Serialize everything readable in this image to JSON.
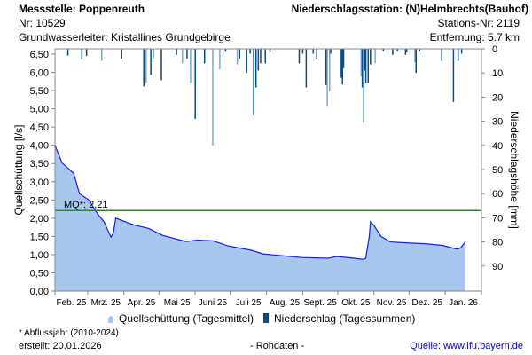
{
  "header": {
    "station_label": "Messstelle: Poppenreuth",
    "number": "Nr: 10529",
    "aquifer": "Grundwasserleiter: Kristallines Grundgebirge",
    "precip_station": "Niederschlagsstation: (N)Helmbrechts(Bauhof)",
    "precip_station_nr": "Stations-Nr: 2119",
    "distance": "Entfernung: 5.7 km"
  },
  "footer": {
    "note": "* Abflussjahr (2010-2024)",
    "created": "erstellt:  20.01.2026",
    "raw": "- Rohdaten -",
    "source": "Quelle: www.lfu.bayern.de"
  },
  "colors": {
    "flow_fill": "#a6c8ef",
    "flow_line": "#1a1aff",
    "precip_dark": "#0a4a85",
    "precip_light": "#7aa8d8",
    "mq": "#2a8a2a",
    "source": "#0000cc"
  },
  "chart_data": {
    "type": "area",
    "x_unit": "days since 2025-02-01",
    "xlabel": "",
    "ylabel": "Quellschüttung [l/s]",
    "y2label": "Niederschlagshöhe [mm]",
    "ylim": [
      0,
      6.5
    ],
    "y2lim": [
      0,
      100
    ],
    "y2_inverted": true,
    "yticks": [
      "0,00",
      "0,50",
      "1,00",
      "1,50",
      "2,00",
      "2,50",
      "3,00",
      "3,50",
      "4,00",
      "4,50",
      "5,00",
      "5,50",
      "6,00",
      "6,50"
    ],
    "y2ticks": [
      "0",
      "10",
      "20",
      "30",
      "40",
      "50",
      "60",
      "70",
      "80",
      "90"
    ],
    "month_starts": [
      0,
      28,
      59,
      89,
      120,
      150,
      181,
      212,
      242,
      273,
      303,
      334,
      365
    ],
    "xticks": [
      "Feb. 25",
      "Mrz. 25",
      "Apr. 25",
      "Mai 25",
      "Juni 25",
      "Juli 25",
      "Aug. 25",
      "Sept. 25",
      "Okt. 25",
      "Nov. 25",
      "Dez. 25",
      "Jan. 26"
    ],
    "reference_line": {
      "label": "MQ*: 2,21",
      "value": 2.21
    },
    "legend": [
      "Quellschüttung (Tagesmittel)",
      "Niederschlag (Tagessummen)"
    ],
    "legend_position": "bottom",
    "series": [
      {
        "name": "Quellschüttung (Tagesmittel)",
        "type": "area",
        "x": [
          0,
          6,
          16,
          21,
          29,
          36,
          42,
          48,
          50,
          52,
          67,
          80,
          92,
          112,
          122,
          135,
          148,
          168,
          178,
          211,
          234,
          241,
          256,
          264,
          266,
          269,
          270,
          273,
          279,
          287,
          302,
          317,
          332,
          344,
          347,
          350,
          351
        ],
        "y": [
          4.0,
          3.52,
          3.23,
          2.67,
          2.5,
          2.14,
          1.9,
          1.48,
          1.6,
          2.0,
          1.82,
          1.72,
          1.53,
          1.36,
          1.4,
          1.38,
          1.24,
          1.12,
          1.02,
          0.92,
          0.9,
          0.95,
          0.9,
          0.87,
          0.9,
          1.5,
          1.9,
          1.8,
          1.5,
          1.35,
          1.32,
          1.3,
          1.25,
          1.15,
          1.18,
          1.3,
          1.35
        ]
      },
      {
        "name": "Niederschlag (Tagessummen)",
        "type": "bar",
        "axis": "y2",
        "x": [
          11,
          23,
          27,
          40,
          57,
          76,
          78,
          82,
          84,
          91,
          104,
          109,
          113,
          116,
          120,
          128,
          135,
          141,
          146,
          156,
          158,
          164,
          167,
          170,
          172,
          174,
          176,
          180,
          184,
          209,
          212,
          215,
          221,
          224,
          232,
          233,
          235,
          236,
          245,
          246,
          247,
          262,
          263,
          264,
          265,
          266,
          268,
          270,
          274,
          281,
          289,
          293,
          300,
          301,
          308,
          309,
          312,
          331,
          341,
          345,
          348
        ],
        "y": [
          2.8,
          4.5,
          3,
          5,
          4,
          15.6,
          14,
          10.8,
          4,
          13,
          2.5,
          6,
          4,
          14,
          29,
          6,
          40,
          8.6,
          1.2,
          6.5,
          4,
          10,
          2,
          27.6,
          16,
          9,
          6,
          6,
          1.5,
          6,
          2,
          16,
          2,
          4.5,
          15,
          24,
          17.5,
          2,
          12,
          14.8,
          8,
          11.5,
          16,
          30.6,
          9,
          14,
          14,
          6.5,
          6,
          1,
          2.5,
          1,
          2.5,
          1.5,
          5.5,
          10,
          1,
          5,
          22,
          5,
          2
        ],
        "light": [
          0,
          0,
          0,
          1,
          0,
          0,
          1,
          0,
          0,
          0,
          0,
          1,
          0,
          1,
          0,
          0,
          1,
          1,
          0,
          1,
          0,
          0,
          0,
          0,
          0,
          0,
          0,
          0,
          0,
          0,
          0,
          0,
          0,
          0,
          0,
          1,
          1,
          0,
          0,
          0,
          0,
          1,
          0,
          1,
          0,
          0,
          0,
          0,
          1,
          0,
          0,
          0,
          0,
          0,
          1,
          0,
          0,
          0,
          0,
          0,
          0
        ]
      }
    ]
  }
}
